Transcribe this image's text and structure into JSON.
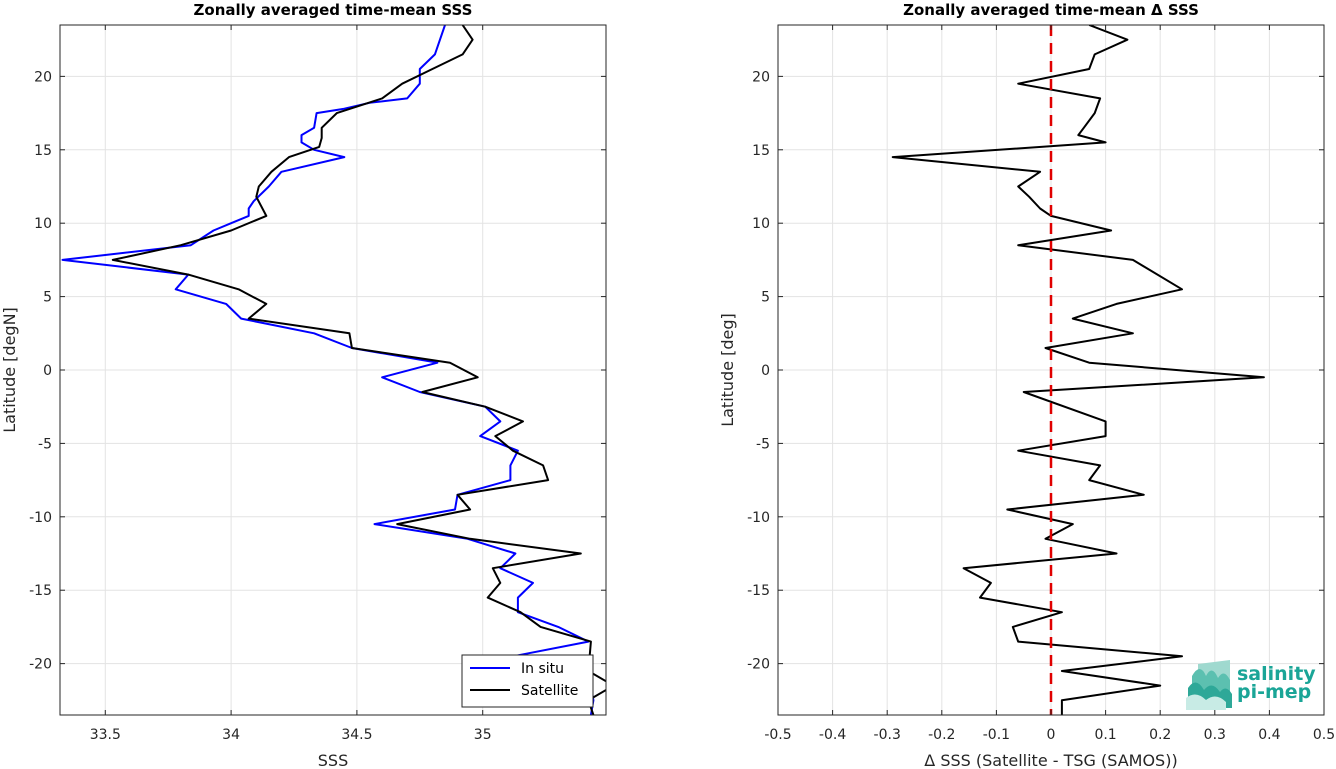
{
  "chart_data": [
    {
      "type": "line",
      "title": "Zonally averaged time-mean SSS",
      "xlabel": "SSS",
      "ylabel": "Latitude [degN]",
      "xlim": [
        33.32,
        35.49
      ],
      "ylim": [
        -23.5,
        23.5
      ],
      "xticks": [
        33.5,
        34,
        34.5,
        35
      ],
      "xtick_labels": [
        "33.5",
        "34",
        "34.5",
        "35"
      ],
      "yticks": [
        -20,
        -15,
        -10,
        -5,
        0,
        5,
        10,
        15,
        20
      ],
      "ytick_labels": [
        "-20",
        "-15",
        "-10",
        "-5",
        "0",
        "5",
        "10",
        "15",
        "20"
      ],
      "grid": true,
      "legend": "bottom-right",
      "series": [
        {
          "name": "In situ",
          "color": "#0000ff",
          "points": [
            [
              34.85,
              23.5
            ],
            [
              34.81,
              21.5
            ],
            [
              34.75,
              20.5
            ],
            [
              34.75,
              19.5
            ],
            [
              34.7,
              18.5
            ],
            [
              34.55,
              18.2
            ],
            [
              34.45,
              17.8
            ],
            [
              34.34,
              17.5
            ],
            [
              34.33,
              16.5
            ],
            [
              34.28,
              16.0
            ],
            [
              34.28,
              15.5
            ],
            [
              34.33,
              15.0
            ],
            [
              34.45,
              14.5
            ],
            [
              34.2,
              13.5
            ],
            [
              34.15,
              12.5
            ],
            [
              34.09,
              11.5
            ],
            [
              34.07,
              11.0
            ],
            [
              34.07,
              10.5
            ],
            [
              34.0,
              10.0
            ],
            [
              33.93,
              9.5
            ],
            [
              33.84,
              8.5
            ],
            [
              33.33,
              7.5
            ],
            [
              33.83,
              6.5
            ],
            [
              33.78,
              5.5
            ],
            [
              33.98,
              4.5
            ],
            [
              34.04,
              3.5
            ],
            [
              34.33,
              2.5
            ],
            [
              34.48,
              1.5
            ],
            [
              34.82,
              0.5
            ],
            [
              34.6,
              -0.5
            ],
            [
              34.75,
              -1.5
            ],
            [
              35.01,
              -2.5
            ],
            [
              35.07,
              -3.5
            ],
            [
              34.99,
              -4.5
            ],
            [
              35.14,
              -5.5
            ],
            [
              35.11,
              -6.5
            ],
            [
              35.11,
              -7.5
            ],
            [
              34.9,
              -8.5
            ],
            [
              34.89,
              -9.5
            ],
            [
              34.57,
              -10.5
            ],
            [
              34.94,
              -11.5
            ],
            [
              35.13,
              -12.5
            ],
            [
              35.07,
              -13.5
            ],
            [
              35.2,
              -14.5
            ],
            [
              35.14,
              -15.5
            ],
            [
              35.14,
              -16.5
            ],
            [
              35.3,
              -17.5
            ],
            [
              35.42,
              -18.5
            ],
            [
              35.12,
              -19.5
            ],
            [
              35.42,
              -20.5
            ],
            [
              35.43,
              -21.5
            ],
            [
              35.44,
              -22.5
            ],
            [
              35.43,
              -23.5
            ]
          ]
        },
        {
          "name": "Satellite",
          "color": "#000000",
          "points": [
            [
              34.92,
              23.5
            ],
            [
              34.96,
              22.5
            ],
            [
              34.92,
              21.5
            ],
            [
              34.8,
              20.5
            ],
            [
              34.68,
              19.5
            ],
            [
              34.6,
              18.5
            ],
            [
              34.42,
              17.5
            ],
            [
              34.36,
              16.5
            ],
            [
              34.36,
              15.8
            ],
            [
              34.35,
              15.2
            ],
            [
              34.23,
              14.5
            ],
            [
              34.16,
              13.5
            ],
            [
              34.11,
              12.5
            ],
            [
              34.1,
              11.8
            ],
            [
              34.14,
              10.5
            ],
            [
              34.0,
              9.5
            ],
            [
              33.8,
              8.5
            ],
            [
              33.53,
              7.5
            ],
            [
              33.83,
              6.5
            ],
            [
              34.03,
              5.5
            ],
            [
              34.14,
              4.5
            ],
            [
              34.07,
              3.5
            ],
            [
              34.47,
              2.5
            ],
            [
              34.48,
              1.5
            ],
            [
              34.87,
              0.5
            ],
            [
              34.98,
              -0.5
            ],
            [
              34.76,
              -1.5
            ],
            [
              35.01,
              -2.5
            ],
            [
              35.16,
              -3.5
            ],
            [
              35.05,
              -4.5
            ],
            [
              35.12,
              -5.5
            ],
            [
              35.24,
              -6.5
            ],
            [
              35.26,
              -7.5
            ],
            [
              34.9,
              -8.5
            ],
            [
              34.95,
              -9.5
            ],
            [
              34.66,
              -10.5
            ],
            [
              34.95,
              -11.5
            ],
            [
              35.39,
              -12.5
            ],
            [
              35.04,
              -13.5
            ],
            [
              35.07,
              -14.5
            ],
            [
              35.02,
              -15.5
            ],
            [
              35.15,
              -16.5
            ],
            [
              35.23,
              -17.5
            ],
            [
              35.43,
              -18.5
            ],
            [
              35.42,
              -20.5
            ],
            [
              35.52,
              -21.5
            ],
            [
              35.42,
              -22.5
            ],
            [
              35.44,
              -23.5
            ]
          ]
        }
      ]
    },
    {
      "type": "line",
      "title": "Zonally averaged time-mean Δ SSS",
      "xlabel": "Δ SSS (Satellite - TSG (SAMOS))",
      "ylabel": "Latitude [deg]",
      "xlim": [
        -0.5,
        0.5
      ],
      "ylim": [
        -23.5,
        23.5
      ],
      "xticks": [
        -0.5,
        -0.4,
        -0.3,
        -0.2,
        -0.1,
        0,
        0.1,
        0.2,
        0.3,
        0.4,
        0.5
      ],
      "xtick_labels": [
        "-0.5",
        "-0.4",
        "-0.3",
        "-0.2",
        "-0.1",
        "0",
        "0.1",
        "0.2",
        "0.3",
        "0.4",
        "0.5"
      ],
      "yticks": [
        -20,
        -15,
        -10,
        -5,
        0,
        5,
        10,
        15,
        20
      ],
      "ytick_labels": [
        "-20",
        "-15",
        "-10",
        "-5",
        "0",
        "5",
        "10",
        "15",
        "20"
      ],
      "grid": true,
      "reference_line": {
        "x": 0,
        "color": "#e00000",
        "style": "dashed"
      },
      "series": [
        {
          "color": "#000000",
          "points": [
            [
              0.07,
              23.5
            ],
            [
              0.14,
              22.5
            ],
            [
              0.08,
              21.5
            ],
            [
              0.07,
              20.5
            ],
            [
              -0.06,
              19.5
            ],
            [
              0.09,
              18.5
            ],
            [
              0.08,
              17.5
            ],
            [
              0.06,
              16.5
            ],
            [
              0.05,
              16.0
            ],
            [
              0.1,
              15.5
            ],
            [
              -0.29,
              14.5
            ],
            [
              -0.02,
              13.5
            ],
            [
              -0.06,
              12.5
            ],
            [
              -0.04,
              11.8
            ],
            [
              -0.02,
              11.0
            ],
            [
              0.0,
              10.5
            ],
            [
              0.11,
              9.5
            ],
            [
              -0.06,
              8.5
            ],
            [
              0.15,
              7.5
            ],
            [
              0.24,
              5.5
            ],
            [
              0.12,
              4.5
            ],
            [
              0.04,
              3.5
            ],
            [
              0.15,
              2.5
            ],
            [
              -0.01,
              1.5
            ],
            [
              0.07,
              0.5
            ],
            [
              0.39,
              -0.5
            ],
            [
              -0.05,
              -1.5
            ],
            [
              0.1,
              -3.5
            ],
            [
              0.1,
              -4.5
            ],
            [
              -0.06,
              -5.5
            ],
            [
              0.09,
              -6.5
            ],
            [
              0.07,
              -7.5
            ],
            [
              0.17,
              -8.5
            ],
            [
              -0.08,
              -9.5
            ],
            [
              0.04,
              -10.5
            ],
            [
              -0.01,
              -11.5
            ],
            [
              0.12,
              -12.5
            ],
            [
              -0.16,
              -13.5
            ],
            [
              -0.11,
              -14.5
            ],
            [
              -0.13,
              -15.5
            ],
            [
              0.02,
              -16.5
            ],
            [
              -0.07,
              -17.5
            ],
            [
              -0.06,
              -18.5
            ],
            [
              0.24,
              -19.5
            ],
            [
              0.02,
              -20.5
            ],
            [
              0.2,
              -21.5
            ],
            [
              0.02,
              -22.5
            ],
            [
              0.02,
              -23.5
            ]
          ]
        }
      ]
    }
  ],
  "legend": {
    "entries": [
      {
        "label": "In situ",
        "color": "#0000ff"
      },
      {
        "label": "Satellite",
        "color": "#000000"
      }
    ]
  },
  "logo": {
    "line1": "salinity",
    "line2": "pi-mep",
    "color": "#1aa597"
  }
}
